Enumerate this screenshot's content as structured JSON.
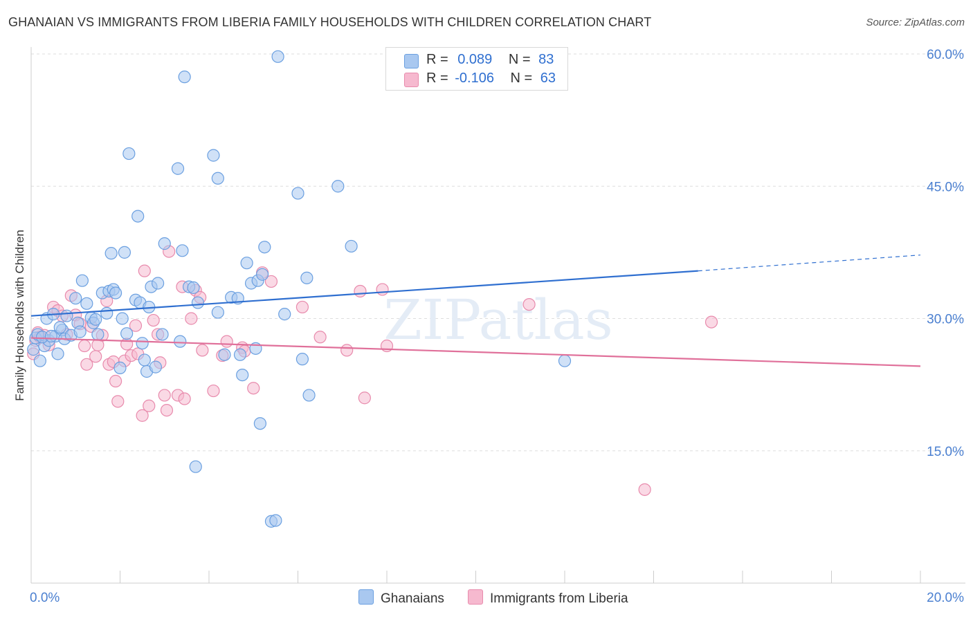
{
  "header": {
    "title": "GHANAIAN VS IMMIGRANTS FROM LIBERIA FAMILY HOUSEHOLDS WITH CHILDREN CORRELATION CHART",
    "source": "Source: ZipAtlas.com"
  },
  "legend": {
    "rows": [
      {
        "r_label": "R =",
        "r_value": "0.089",
        "n_label": "N =",
        "n_value": "83"
      },
      {
        "r_label": "R =",
        "r_value": "-0.106",
        "n_label": "N =",
        "n_value": "63"
      }
    ]
  },
  "bottom_legend": {
    "series1": "Ghanaians",
    "series2": "Immigrants from Liberia"
  },
  "colors": {
    "blue_fill": "#a9c8f0",
    "blue_stroke": "#6a9fe0",
    "blue_line": "#2f6fd0",
    "pink_fill": "#f6b9cf",
    "pink_stroke": "#e88aac",
    "pink_line": "#e0709a",
    "grid": "#dddddd",
    "tick_text": "#4a7fd0"
  },
  "watermark": "ZIPatlas",
  "chart_data": {
    "type": "scatter",
    "title": "GHANAIAN VS IMMIGRANTS FROM LIBERIA FAMILY HOUSEHOLDS WITH CHILDREN CORRELATION CHART",
    "xlabel": "",
    "ylabel": "Family Households with Children",
    "xlim": [
      0,
      20
    ],
    "ylim": [
      0,
      60
    ],
    "x_tick_labels": {
      "0": "0.0%",
      "20": "20.0%"
    },
    "y_ticks": [
      15,
      30,
      45,
      60
    ],
    "y_tick_labels": [
      "15.0%",
      "30.0%",
      "45.0%",
      "60.0%"
    ],
    "series": [
      {
        "name": "Ghanaians",
        "R": 0.089,
        "N": 83,
        "trend": {
          "x0": 0,
          "y0": 30.3,
          "x1": 15.0,
          "y1": 35.4,
          "dash_x1": 20,
          "dash_y1": 37.2
        },
        "points": [
          [
            0.05,
            26.5
          ],
          [
            0.1,
            27.8
          ],
          [
            0.15,
            28.2
          ],
          [
            0.2,
            25.2
          ],
          [
            0.3,
            26.9
          ],
          [
            0.35,
            30.0
          ],
          [
            0.4,
            27.5
          ],
          [
            0.5,
            30.5
          ],
          [
            0.55,
            28.0
          ],
          [
            0.6,
            26.0
          ],
          [
            0.7,
            28.7
          ],
          [
            0.75,
            27.7
          ],
          [
            0.8,
            30.3
          ],
          [
            0.9,
            28.1
          ],
          [
            1.0,
            32.3
          ],
          [
            1.05,
            29.5
          ],
          [
            1.1,
            28.5
          ],
          [
            1.15,
            34.3
          ],
          [
            1.25,
            31.7
          ],
          [
            1.35,
            30.1
          ],
          [
            1.4,
            29.5
          ],
          [
            1.45,
            29.9
          ],
          [
            1.5,
            28.2
          ],
          [
            1.6,
            32.9
          ],
          [
            1.7,
            30.6
          ],
          [
            1.75,
            33.1
          ],
          [
            1.8,
            37.4
          ],
          [
            1.85,
            33.3
          ],
          [
            1.9,
            32.9
          ],
          [
            2.0,
            24.4
          ],
          [
            2.05,
            30.0
          ],
          [
            2.1,
            37.5
          ],
          [
            2.15,
            28.3
          ],
          [
            2.2,
            48.7
          ],
          [
            2.35,
            32.1
          ],
          [
            2.4,
            41.6
          ],
          [
            2.45,
            31.8
          ],
          [
            2.5,
            27.2
          ],
          [
            2.55,
            25.3
          ],
          [
            2.6,
            24.0
          ],
          [
            2.65,
            31.3
          ],
          [
            2.7,
            33.6
          ],
          [
            2.8,
            24.5
          ],
          [
            2.85,
            34.0
          ],
          [
            2.95,
            28.2
          ],
          [
            3.0,
            38.5
          ],
          [
            3.3,
            47.0
          ],
          [
            3.35,
            27.4
          ],
          [
            3.4,
            37.7
          ],
          [
            3.45,
            57.4
          ],
          [
            3.55,
            33.6
          ],
          [
            3.65,
            33.5
          ],
          [
            3.7,
            13.2
          ],
          [
            3.75,
            31.8
          ],
          [
            4.1,
            48.5
          ],
          [
            4.2,
            45.9
          ],
          [
            4.2,
            30.7
          ],
          [
            4.35,
            25.9
          ],
          [
            4.5,
            32.4
          ],
          [
            4.65,
            32.3
          ],
          [
            4.7,
            25.9
          ],
          [
            4.75,
            23.6
          ],
          [
            4.85,
            36.3
          ],
          [
            4.95,
            34.0
          ],
          [
            5.05,
            26.6
          ],
          [
            5.1,
            34.3
          ],
          [
            5.15,
            18.1
          ],
          [
            5.2,
            35.0
          ],
          [
            5.25,
            38.1
          ],
          [
            5.4,
            7.0
          ],
          [
            5.5,
            7.1
          ],
          [
            5.55,
            59.7
          ],
          [
            5.7,
            30.5
          ],
          [
            6.0,
            44.2
          ],
          [
            6.1,
            25.4
          ],
          [
            6.2,
            34.6
          ],
          [
            6.25,
            21.3
          ],
          [
            6.9,
            45.0
          ],
          [
            7.2,
            38.2
          ],
          [
            12.0,
            25.2
          ],
          [
            0.25,
            27.9
          ],
          [
            0.45,
            28.0
          ],
          [
            0.65,
            29.0
          ]
        ]
      },
      {
        "name": "Immigrants from Liberia",
        "R": -0.106,
        "N": 63,
        "trend": {
          "x0": 0,
          "y0": 27.8,
          "x1": 20,
          "y1": 24.6
        },
        "points": [
          [
            0.05,
            26.0
          ],
          [
            0.1,
            27.5
          ],
          [
            0.15,
            28.4
          ],
          [
            0.2,
            27.9
          ],
          [
            0.3,
            28.1
          ],
          [
            0.4,
            27.0
          ],
          [
            0.5,
            31.3
          ],
          [
            0.6,
            30.9
          ],
          [
            0.7,
            30.3
          ],
          [
            0.8,
            28.2
          ],
          [
            0.9,
            32.6
          ],
          [
            1.0,
            30.4
          ],
          [
            1.1,
            29.4
          ],
          [
            1.2,
            26.9
          ],
          [
            1.25,
            24.8
          ],
          [
            1.35,
            29.1
          ],
          [
            1.45,
            25.7
          ],
          [
            1.5,
            27.0
          ],
          [
            1.6,
            28.1
          ],
          [
            1.7,
            32.0
          ],
          [
            1.75,
            24.8
          ],
          [
            1.85,
            25.1
          ],
          [
            1.9,
            22.9
          ],
          [
            1.95,
            20.6
          ],
          [
            2.1,
            25.2
          ],
          [
            2.15,
            27.1
          ],
          [
            2.25,
            25.8
          ],
          [
            2.35,
            29.2
          ],
          [
            2.4,
            26.0
          ],
          [
            2.5,
            19.0
          ],
          [
            2.55,
            35.4
          ],
          [
            2.65,
            20.1
          ],
          [
            2.75,
            29.8
          ],
          [
            2.85,
            28.2
          ],
          [
            2.9,
            25.0
          ],
          [
            3.0,
            21.3
          ],
          [
            3.05,
            19.6
          ],
          [
            3.1,
            37.6
          ],
          [
            3.3,
            21.3
          ],
          [
            3.4,
            33.6
          ],
          [
            3.45,
            20.9
          ],
          [
            3.6,
            30.0
          ],
          [
            3.7,
            33.2
          ],
          [
            3.8,
            32.4
          ],
          [
            3.85,
            26.4
          ],
          [
            4.1,
            21.8
          ],
          [
            4.3,
            25.8
          ],
          [
            4.4,
            27.4
          ],
          [
            4.75,
            26.7
          ],
          [
            4.8,
            26.3
          ],
          [
            5.0,
            22.1
          ],
          [
            5.2,
            35.2
          ],
          [
            5.4,
            34.2
          ],
          [
            6.1,
            31.3
          ],
          [
            6.5,
            27.9
          ],
          [
            7.1,
            26.4
          ],
          [
            7.4,
            33.1
          ],
          [
            7.5,
            21.0
          ],
          [
            7.9,
            33.3
          ],
          [
            8.0,
            26.9
          ],
          [
            11.2,
            31.6
          ],
          [
            13.8,
            10.6
          ],
          [
            15.3,
            29.6
          ]
        ]
      }
    ]
  }
}
